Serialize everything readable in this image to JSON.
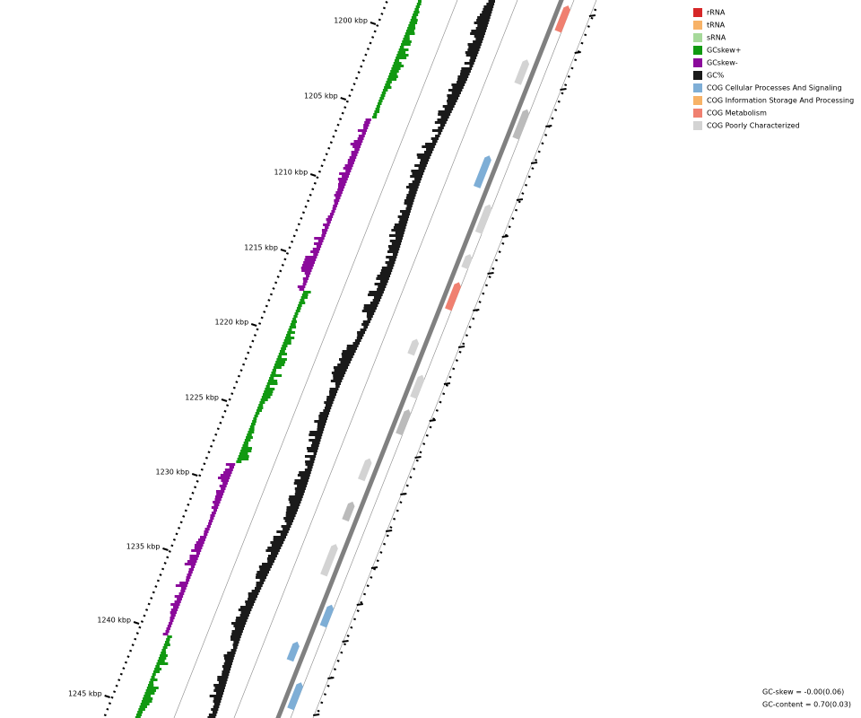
{
  "ticks": [
    {
      "label": "1200 kbp"
    },
    {
      "label": "1205 kbp"
    },
    {
      "label": "1210 kbp"
    },
    {
      "label": "1215 kbp"
    },
    {
      "label": "1220 kbp"
    },
    {
      "label": "1225 kbp"
    },
    {
      "label": "1230 kbp"
    },
    {
      "label": "1235 kbp"
    },
    {
      "label": "1240 kbp"
    },
    {
      "label": "1245 kbp"
    }
  ],
  "legend": [
    {
      "label": "rRNA",
      "color": "#d62728"
    },
    {
      "label": "tRNA",
      "color": "#f7b267"
    },
    {
      "label": "sRNA",
      "color": "#a6d99a"
    },
    {
      "label": "GCskew+",
      "color": "#119911"
    },
    {
      "label": "GCskew-",
      "color": "#8b0a9b"
    },
    {
      "label": "GC%",
      "color": "#1a1a1a"
    },
    {
      "label": "COG Cellular Processes And Signaling",
      "color": "#7eaed6"
    },
    {
      "label": "COG Information Storage And Processing",
      "color": "#f7b267"
    },
    {
      "label": "COG Metabolism",
      "color": "#f08070"
    },
    {
      "label": "COG Poorly Characterized",
      "color": "#d3d3d3"
    }
  ],
  "footer": {
    "gc_skew": "GC-skew = -0.00(0.06)",
    "gc_content": "GC-content = 0.70(0.03)"
  }
}
